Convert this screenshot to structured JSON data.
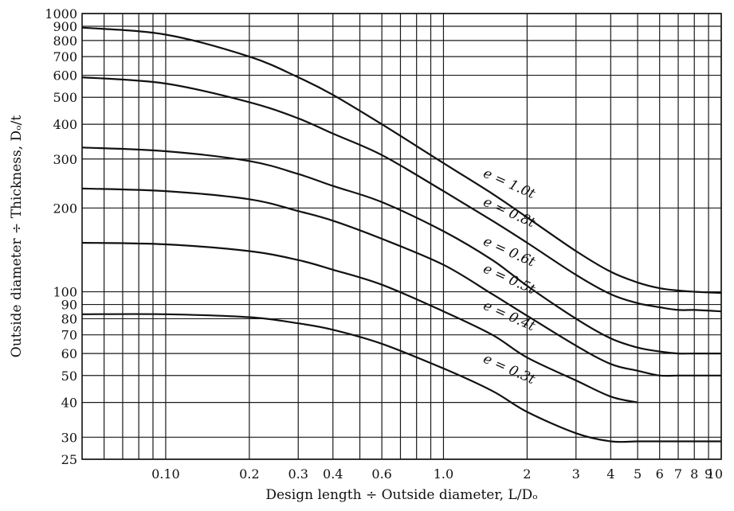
{
  "chart_data": {
    "type": "line",
    "xlabel": "Design length ÷ Outside diameter, L/Dₒ",
    "ylabel": "Outside diameter ÷ Thickness, Dₒ/t",
    "x_scale": "log",
    "y_scale": "log",
    "xlim": [
      0.05,
      10
    ],
    "ylim": [
      25,
      1000
    ],
    "grid": true,
    "x_ticks": [
      {
        "value": 0.1,
        "label": "0.10"
      },
      {
        "value": 0.2,
        "label": "0.2"
      },
      {
        "value": 0.3,
        "label": "0.3"
      },
      {
        "value": 0.4,
        "label": "0.4"
      },
      {
        "value": 0.6,
        "label": "0.6"
      },
      {
        "value": 1.0,
        "label": "1.0"
      },
      {
        "value": 2,
        "label": "2"
      },
      {
        "value": 3,
        "label": "3"
      },
      {
        "value": 4,
        "label": "4"
      },
      {
        "value": 5,
        "label": "5"
      },
      {
        "value": 6,
        "label": "6"
      },
      {
        "value": 7,
        "label": "7"
      },
      {
        "value": 8,
        "label": "8"
      },
      {
        "value": 9,
        "label": "9"
      },
      {
        "value": 10,
        "label": "10"
      }
    ],
    "x_extra_gridlines": [
      0.06,
      0.07,
      0.08,
      0.09,
      0.5,
      0.7,
      0.8,
      0.9
    ],
    "y_ticks": [
      {
        "value": 25,
        "label": "25"
      },
      {
        "value": 30,
        "label": "30"
      },
      {
        "value": 40,
        "label": "40"
      },
      {
        "value": 50,
        "label": "50"
      },
      {
        "value": 60,
        "label": "60"
      },
      {
        "value": 70,
        "label": "70"
      },
      {
        "value": 80,
        "label": "80"
      },
      {
        "value": 90,
        "label": "90"
      },
      {
        "value": 100,
        "label": "100"
      },
      {
        "value": 200,
        "label": "200"
      },
      {
        "value": 300,
        "label": "300"
      },
      {
        "value": 400,
        "label": "400"
      },
      {
        "value": 500,
        "label": "500"
      },
      {
        "value": 600,
        "label": "600"
      },
      {
        "value": 700,
        "label": "700"
      },
      {
        "value": 800,
        "label": "800"
      },
      {
        "value": 900,
        "label": "900"
      },
      {
        "value": 1000,
        "label": "1000"
      }
    ],
    "series": [
      {
        "name": "e = 1.0t",
        "x": [
          0.05,
          0.1,
          0.2,
          0.3,
          0.4,
          0.6,
          1.0,
          1.5,
          2,
          3,
          4,
          5,
          6,
          7,
          8,
          10
        ],
        "y": [
          890,
          840,
          700,
          590,
          510,
          400,
          290,
          225,
          185,
          140,
          118,
          108,
          103,
          101,
          100,
          99
        ]
      },
      {
        "name": "e = 0.8t",
        "x": [
          0.05,
          0.1,
          0.2,
          0.3,
          0.4,
          0.6,
          1.0,
          1.5,
          2,
          3,
          4,
          5,
          6,
          7,
          8,
          10
        ],
        "y": [
          590,
          560,
          480,
          420,
          370,
          310,
          230,
          180,
          150,
          115,
          98,
          91,
          88,
          86,
          86,
          85
        ]
      },
      {
        "name": "e = 0.6t",
        "x": [
          0.05,
          0.1,
          0.2,
          0.3,
          0.4,
          0.6,
          1.0,
          1.5,
          2,
          3,
          4,
          5,
          6,
          7,
          8,
          10
        ],
        "y": [
          330,
          320,
          295,
          265,
          240,
          210,
          165,
          130,
          105,
          80,
          68,
          63,
          61,
          60,
          60,
          60
        ]
      },
      {
        "name": "e = 0.5t",
        "x": [
          0.05,
          0.1,
          0.2,
          0.3,
          0.4,
          0.6,
          1.0,
          1.5,
          2,
          3,
          4,
          5,
          6,
          7,
          8,
          10
        ],
        "y": [
          235,
          230,
          215,
          195,
          180,
          155,
          125,
          98,
          82,
          64,
          55,
          52,
          50,
          50,
          50,
          50
        ]
      },
      {
        "name": "e = 0.4t",
        "x": [
          0.05,
          0.1,
          0.2,
          0.3,
          0.4,
          0.6,
          1.0,
          1.5,
          2,
          3,
          4,
          5
        ],
        "y": [
          150,
          148,
          140,
          130,
          120,
          106,
          85,
          70,
          58,
          48,
          42,
          40
        ]
      },
      {
        "name": "e = 0.3t",
        "x": [
          0.05,
          0.1,
          0.2,
          0.3,
          0.4,
          0.6,
          1.0,
          1.5,
          2,
          3,
          4,
          5,
          6,
          7,
          8,
          10
        ],
        "y": [
          83,
          83,
          81,
          77,
          73,
          65,
          53,
          44,
          37,
          31,
          29,
          29,
          29,
          29,
          29,
          29
        ]
      }
    ],
    "curve_labels": [
      {
        "text": "e = 1.0t",
        "x": 1.38,
        "y": 260
      },
      {
        "text": "e = 0.8t",
        "x": 1.38,
        "y": 205
      },
      {
        "text": "e = 0.6t",
        "x": 1.38,
        "y": 148
      },
      {
        "text": "e = 0.5t",
        "x": 1.38,
        "y": 118
      },
      {
        "text": "e = 0.4t",
        "x": 1.38,
        "y": 87
      },
      {
        "text": "e = 0.3t",
        "x": 1.38,
        "y": 56
      }
    ]
  }
}
